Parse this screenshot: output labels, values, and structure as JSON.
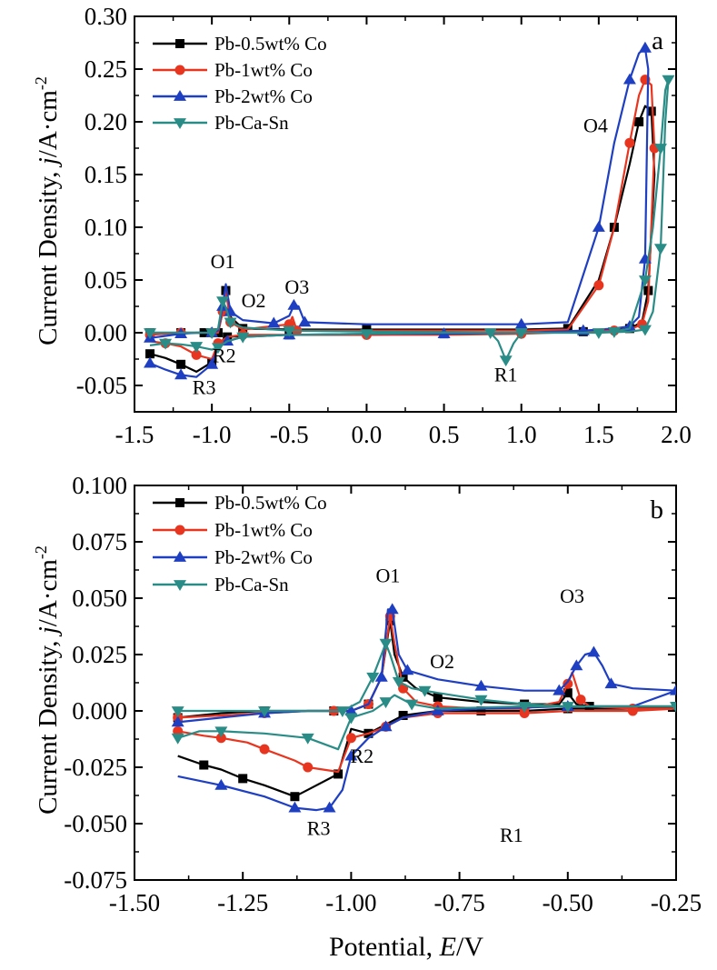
{
  "figure": {
    "shared_xlabel_prefix": "Potential, ",
    "shared_xlabel_symbol": "E",
    "shared_xlabel_unit": "/V",
    "ylabel_prefix": "Current Density, ",
    "ylabel_symbol": "j",
    "ylabel_unit": "/A·cm",
    "ylabel_exp": "-2"
  },
  "chart_data": [
    {
      "type": "line",
      "panel": "a",
      "xlim": [
        -1.5,
        2.0
      ],
      "ylim": [
        -0.075,
        0.3
      ],
      "xticks": [
        "-1.5",
        "-1.0",
        "-0.5",
        "0.0",
        "0.5",
        "1.0",
        "1.5",
        "2.0"
      ],
      "yticks": [
        "-0.05",
        "0.00",
        "0.05",
        "0.10",
        "0.15",
        "0.20",
        "0.25",
        "0.30"
      ],
      "grid": false,
      "legend_position": "top-left",
      "annotations": [
        {
          "text": "O1",
          "x": -0.93,
          "y": 0.061
        },
        {
          "text": "O2",
          "x": -0.73,
          "y": 0.024
        },
        {
          "text": "O3",
          "x": -0.45,
          "y": 0.037
        },
        {
          "text": "O4",
          "x": 1.48,
          "y": 0.19
        },
        {
          "text": "R1",
          "x": 0.9,
          "y": -0.046
        },
        {
          "text": "R2",
          "x": -0.92,
          "y": -0.028
        },
        {
          "text": "R3",
          "x": -1.05,
          "y": -0.058
        }
      ],
      "series": [
        {
          "name": "Pb-0.5wt% Co",
          "color": "#000000",
          "marker": "square",
          "x": [
            -1.4,
            -1.3,
            -1.2,
            -1.13,
            -1.05,
            -1.0,
            -0.96,
            -0.93,
            -0.91,
            -0.88,
            -0.8,
            -0.5,
            0.0,
            1.0,
            1.3,
            1.5,
            1.6,
            1.7,
            1.76,
            1.8,
            1.84,
            1.86,
            1.82,
            1.78,
            1.7,
            1.6,
            1.4,
            1.0,
            0.5,
            0.0,
            -0.5,
            -0.8,
            -0.9,
            -0.96,
            -1.0,
            -1.1,
            -1.2,
            -1.3,
            -1.4
          ],
          "y": [
            0.0,
            0.0,
            0.0,
            0.0,
            0.0,
            0.0,
            0.0,
            0.02,
            0.04,
            0.015,
            0.004,
            0.003,
            0.003,
            0.003,
            0.004,
            0.05,
            0.1,
            0.16,
            0.2,
            0.215,
            0.21,
            0.15,
            0.04,
            0.01,
            0.004,
            0.002,
            0.001,
            0.0,
            -0.001,
            -0.002,
            -0.002,
            -0.003,
            -0.004,
            -0.01,
            -0.028,
            -0.037,
            -0.03,
            -0.024,
            -0.02
          ]
        },
        {
          "name": "Pb-1wt% Co",
          "color": "#e8351f",
          "marker": "circle",
          "x": [
            -1.4,
            -1.3,
            -1.2,
            -1.1,
            -1.0,
            -0.96,
            -0.93,
            -0.91,
            -0.88,
            -0.8,
            -0.5,
            -0.48,
            -0.45,
            0.0,
            1.0,
            1.3,
            1.5,
            1.6,
            1.7,
            1.76,
            1.8,
            1.84,
            1.86,
            1.82,
            1.78,
            1.7,
            1.6,
            1.4,
            1.0,
            0.5,
            0.0,
            -0.5,
            -0.8,
            -0.9,
            -0.96,
            -1.0,
            -1.1,
            -1.2,
            -1.3,
            -1.4
          ],
          "y": [
            -0.002,
            -0.001,
            0.0,
            0.0,
            0.0,
            0.0,
            0.02,
            0.04,
            0.01,
            0.003,
            0.008,
            0.015,
            0.002,
            0.002,
            0.002,
            0.003,
            0.045,
            0.1,
            0.18,
            0.225,
            0.24,
            0.235,
            0.175,
            0.03,
            0.008,
            0.003,
            0.002,
            0.001,
            -0.001,
            -0.002,
            -0.002,
            -0.002,
            -0.002,
            -0.004,
            -0.01,
            -0.025,
            -0.021,
            -0.013,
            -0.01,
            -0.008
          ]
        },
        {
          "name": "Pb-2wt% Co",
          "color": "#1f3fc2",
          "marker": "triangle-up",
          "x": [
            -1.4,
            -1.3,
            -1.2,
            -1.1,
            -1.0,
            -0.96,
            -0.93,
            -0.91,
            -0.88,
            -0.8,
            -0.6,
            -0.5,
            -0.47,
            -0.44,
            -0.4,
            0.0,
            1.0,
            1.3,
            1.5,
            1.6,
            1.7,
            1.76,
            1.8,
            1.82,
            1.8,
            1.76,
            1.7,
            1.6,
            1.4,
            1.0,
            0.5,
            0.0,
            -0.5,
            -0.8,
            -0.9,
            -0.96,
            -1.0,
            -1.1,
            -1.2,
            -1.3,
            -1.4
          ],
          "y": [
            -0.005,
            -0.003,
            -0.001,
            0.0,
            0.0,
            0.002,
            0.025,
            0.046,
            0.02,
            0.012,
            0.009,
            0.016,
            0.026,
            0.025,
            0.01,
            0.008,
            0.008,
            0.01,
            0.1,
            0.18,
            0.24,
            0.265,
            0.27,
            0.25,
            0.07,
            0.015,
            0.006,
            0.004,
            0.002,
            0.0,
            -0.001,
            -0.001,
            -0.002,
            -0.004,
            -0.008,
            -0.013,
            -0.03,
            -0.042,
            -0.04,
            -0.035,
            -0.029
          ]
        },
        {
          "name": "Pb-Ca-Sn",
          "color": "#2a8c86",
          "marker": "triangle-down",
          "x": [
            -1.4,
            -1.2,
            -1.0,
            -0.96,
            -0.93,
            -0.91,
            -0.88,
            -0.8,
            -0.5,
            0.0,
            0.8,
            0.85,
            0.9,
            0.95,
            1.0,
            1.4,
            1.6,
            1.7,
            1.8,
            1.85,
            1.9,
            1.93,
            1.95,
            1.93,
            1.9,
            1.85,
            1.8,
            1.7,
            1.5,
            1.3,
            1.0,
            0.5,
            0.0,
            -0.5,
            -0.8,
            -0.9,
            -0.96,
            -1.0,
            -1.1,
            -1.2,
            -1.3,
            -1.4
          ],
          "y": [
            0.0,
            0.0,
            0.0,
            0.004,
            0.03,
            0.024,
            0.01,
            0.005,
            0.002,
            0.001,
            0.0,
            -0.008,
            -0.026,
            -0.01,
            0.0,
            0.0,
            0.001,
            0.004,
            0.05,
            0.1,
            0.175,
            0.23,
            0.24,
            0.2,
            0.08,
            0.02,
            0.003,
            0.001,
            0.0,
            0.0,
            0.0,
            0.0,
            -0.001,
            -0.002,
            -0.004,
            -0.008,
            -0.014,
            -0.016,
            -0.013,
            -0.011,
            -0.01,
            -0.012
          ]
        }
      ]
    },
    {
      "type": "line",
      "panel": "b",
      "xlim": [
        -1.5,
        -0.25
      ],
      "ylim": [
        -0.075,
        0.1
      ],
      "xticks": [
        "-1.50",
        "-1.25",
        "-1.00",
        "-0.75",
        "-0.50",
        "-0.25"
      ],
      "yticks": [
        "-0.075",
        "-0.050",
        "-0.025",
        "0.000",
        "0.025",
        "0.050",
        "0.075",
        "0.100"
      ],
      "grid": false,
      "legend_position": "top-left",
      "annotations": [
        {
          "text": "O1",
          "x": -0.915,
          "y": 0.057
        },
        {
          "text": "O2",
          "x": -0.79,
          "y": 0.019
        },
        {
          "text": "O3",
          "x": -0.49,
          "y": 0.048
        },
        {
          "text": "R1",
          "x": -0.63,
          "y": -0.058
        },
        {
          "text": "R2",
          "x": -0.975,
          "y": -0.023
        },
        {
          "text": "R3",
          "x": -1.075,
          "y": -0.055
        }
      ],
      "series": [
        {
          "name": "Pb-0.5wt% Co",
          "color": "#000000",
          "marker": "square",
          "x": [
            -1.4,
            -1.3,
            -1.2,
            -1.1,
            -1.04,
            -1.0,
            -0.96,
            -0.93,
            -0.91,
            -0.9,
            -0.88,
            -0.85,
            -0.8,
            -0.7,
            -0.6,
            -0.52,
            -0.5,
            -0.48,
            -0.45,
            -0.35,
            -0.25,
            -0.35,
            -0.5,
            -0.6,
            -0.7,
            -0.8,
            -0.88,
            -0.92,
            -0.96,
            -1.0,
            -1.03,
            -1.1,
            -1.13,
            -1.2,
            -1.25,
            -1.3,
            -1.34,
            -1.4
          ],
          "y": [
            -0.003,
            -0.001,
            0.0,
            0.0,
            0.0,
            0.0,
            0.003,
            0.015,
            0.04,
            0.025,
            0.015,
            0.01,
            0.006,
            0.004,
            0.003,
            0.003,
            0.008,
            0.003,
            0.002,
            0.002,
            0.002,
            0.001,
            0.001,
            0.0,
            0.0,
            0.0,
            -0.002,
            -0.006,
            -0.01,
            -0.008,
            -0.028,
            -0.035,
            -0.038,
            -0.033,
            -0.03,
            -0.026,
            -0.024,
            -0.02
          ]
        },
        {
          "name": "Pb-1wt% Co",
          "color": "#e8351f",
          "marker": "circle",
          "x": [
            -1.4,
            -1.3,
            -1.2,
            -1.1,
            -1.04,
            -1.0,
            -0.96,
            -0.93,
            -0.91,
            -0.9,
            -0.88,
            -0.85,
            -0.8,
            -0.7,
            -0.6,
            -0.52,
            -0.5,
            -0.49,
            -0.47,
            -0.45,
            -0.35,
            -0.25,
            -0.35,
            -0.5,
            -0.6,
            -0.7,
            -0.8,
            -0.88,
            -0.92,
            -0.96,
            -1.0,
            -1.03,
            -1.1,
            -1.13,
            -1.2,
            -1.24,
            -1.3,
            -1.34,
            -1.4
          ],
          "y": [
            -0.003,
            -0.002,
            -0.001,
            0.0,
            0.0,
            0.0,
            0.003,
            0.015,
            0.042,
            0.03,
            0.01,
            0.004,
            0.002,
            0.001,
            0.001,
            0.004,
            0.012,
            0.017,
            0.005,
            0.002,
            0.001,
            0.001,
            0.0,
            0.0,
            -0.001,
            -0.001,
            -0.001,
            -0.003,
            -0.007,
            -0.01,
            -0.012,
            -0.027,
            -0.025,
            -0.022,
            -0.017,
            -0.014,
            -0.012,
            -0.011,
            -0.009
          ]
        },
        {
          "name": "Pb-2wt% Co",
          "color": "#1f3fc2",
          "marker": "triangle-up",
          "x": [
            -1.4,
            -1.3,
            -1.2,
            -1.1,
            -1.0,
            -0.96,
            -0.93,
            -0.915,
            -0.905,
            -0.89,
            -0.87,
            -0.8,
            -0.7,
            -0.6,
            -0.52,
            -0.5,
            -0.48,
            -0.46,
            -0.44,
            -0.42,
            -0.4,
            -0.35,
            -0.25,
            -0.35,
            -0.5,
            -0.7,
            -0.8,
            -0.88,
            -0.92,
            -0.96,
            -1.0,
            -1.02,
            -1.05,
            -1.08,
            -1.13,
            -1.2,
            -1.3,
            -1.4
          ],
          "y": [
            -0.005,
            -0.003,
            -0.001,
            0.0,
            0.0,
            0.003,
            0.015,
            0.045,
            0.045,
            0.025,
            0.018,
            0.014,
            0.011,
            0.009,
            0.009,
            0.013,
            0.02,
            0.025,
            0.026,
            0.02,
            0.012,
            0.01,
            0.009,
            0.002,
            0.002,
            0.001,
            0.0,
            -0.003,
            -0.007,
            -0.012,
            -0.02,
            -0.035,
            -0.043,
            -0.044,
            -0.043,
            -0.038,
            -0.033,
            -0.029
          ]
        },
        {
          "name": "Pb-Ca-Sn",
          "color": "#2a8c86",
          "marker": "triangle-down",
          "x": [
            -1.4,
            -1.3,
            -1.2,
            -1.1,
            -1.02,
            -0.98,
            -0.95,
            -0.93,
            -0.92,
            -0.91,
            -0.89,
            -0.86,
            -0.83,
            -0.8,
            -0.7,
            -0.6,
            -0.5,
            -0.4,
            -0.25,
            -0.4,
            -0.6,
            -0.8,
            -0.86,
            -0.9,
            -0.92,
            -0.95,
            -1.0,
            -1.03,
            -1.1,
            -1.2,
            -1.3,
            -1.35,
            -1.4
          ],
          "y": [
            0.0,
            0.0,
            0.0,
            0.0,
            0.0,
            0.004,
            0.015,
            0.025,
            0.03,
            0.025,
            0.013,
            0.01,
            0.009,
            0.008,
            0.005,
            0.003,
            0.002,
            0.002,
            0.002,
            0.002,
            0.002,
            0.001,
            0.003,
            0.007,
            0.004,
            0.0,
            -0.003,
            -0.017,
            -0.012,
            -0.01,
            -0.009,
            -0.009,
            -0.012
          ]
        }
      ]
    }
  ]
}
